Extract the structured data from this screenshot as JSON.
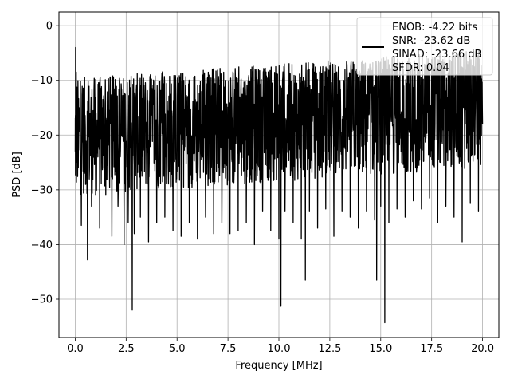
{
  "chart_data": {
    "type": "line",
    "title": "",
    "xlabel": "Frequency [MHz]",
    "ylabel": "PSD [dB]",
    "xlim": [
      -0.8,
      20.8
    ],
    "ylim": [
      -57,
      2.5
    ],
    "xticks": [
      0.0,
      2.5,
      5.0,
      7.5,
      10.0,
      12.5,
      15.0,
      17.5,
      20.0
    ],
    "xtick_labels": [
      "0.0",
      "2.5",
      "5.0",
      "7.5",
      "10.0",
      "12.5",
      "15.0",
      "17.5",
      "20.0"
    ],
    "yticks": [
      0,
      -10,
      -20,
      -30,
      -40,
      -50
    ],
    "ytick_labels": [
      "0",
      "−10",
      "−20",
      "−30",
      "−40",
      "−50"
    ],
    "grid": true,
    "legend_placement": "top-right",
    "legend_lines": [
      "ENOB: -4.22 bits",
      "SNR: -23.62 dB",
      "SINAD: -23.66 dB",
      "SFDR: 0.04"
    ],
    "series": [
      {
        "color": "#000000",
        "x": [
          0.0,
          0.02,
          0.05,
          0.1,
          0.15,
          0.2,
          0.3,
          0.45,
          0.6,
          0.8,
          1.0,
          1.2,
          1.5,
          1.8,
          2.1,
          2.4,
          2.6,
          2.8,
          2.9,
          3.2,
          3.6,
          4.0,
          4.4,
          4.8,
          5.2,
          5.6,
          6.0,
          6.4,
          6.8,
          7.2,
          7.6,
          8.0,
          8.4,
          8.8,
          9.2,
          9.6,
          10.0,
          10.1,
          10.3,
          10.7,
          11.1,
          11.3,
          11.5,
          11.9,
          12.3,
          12.7,
          13.1,
          13.5,
          13.9,
          14.3,
          14.7,
          14.8,
          15.0,
          15.2,
          15.4,
          15.8,
          16.2,
          16.6,
          17.0,
          17.4,
          17.8,
          18.2,
          18.6,
          19.0,
          19.4,
          19.8,
          20.0
        ],
        "y": [
          -23,
          -4,
          -8.5,
          -20,
          -26,
          -15,
          -36.5,
          -27,
          -42.8,
          -33,
          -31,
          -37,
          -31,
          -38.5,
          -33,
          -40,
          -36,
          -52,
          -38,
          -35,
          -39.5,
          -36,
          -35,
          -37.5,
          -38.5,
          -36,
          -39,
          -35,
          -38,
          -36,
          -38,
          -37.5,
          -36,
          -40,
          -34,
          -37.5,
          -39,
          -51.3,
          -34,
          -36,
          -39,
          -46.5,
          -34,
          -37,
          -33.5,
          -38.5,
          -34,
          -35,
          -37,
          -34,
          -35.5,
          -46.5,
          -33,
          -54.3,
          -36,
          -33.5,
          -35,
          -32,
          -33.5,
          -31.5,
          -36,
          -33,
          -35,
          -39.5,
          -32.5,
          -34,
          -18
        ]
      }
    ]
  }
}
